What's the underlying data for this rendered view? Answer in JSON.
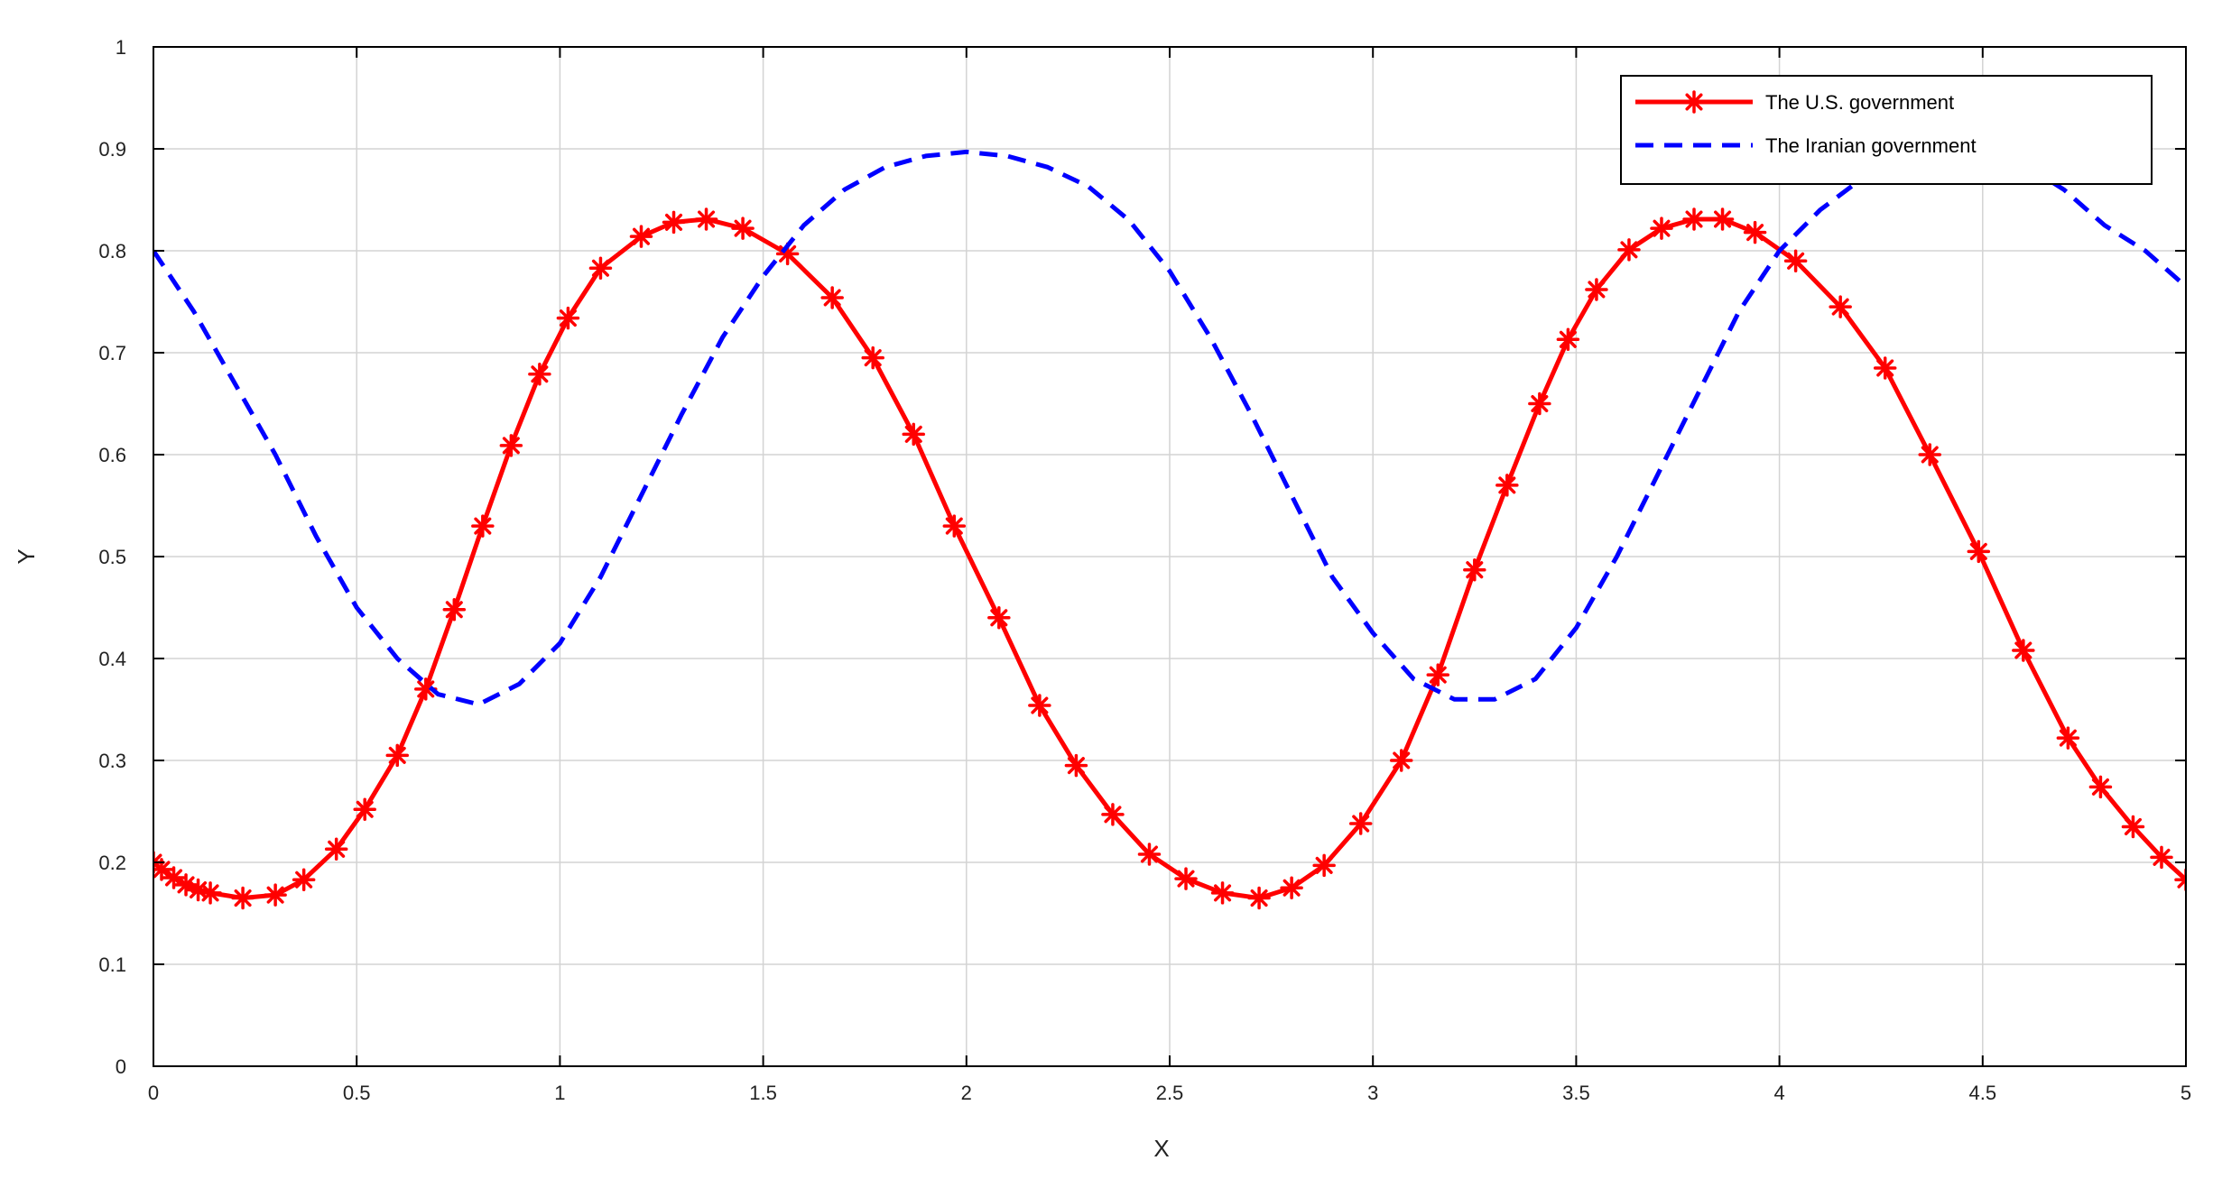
{
  "chart_data": {
    "type": "line",
    "title": "",
    "xlabel": "X",
    "ylabel": "Y",
    "xlim": [
      0,
      5
    ],
    "ylim": [
      0,
      1
    ],
    "xticks": [
      0,
      0.5,
      1,
      1.5,
      2,
      2.5,
      3,
      3.5,
      4,
      4.5,
      5
    ],
    "xtick_labels": [
      "0",
      "0.5",
      "1",
      "1.5",
      "2",
      "2.5",
      "3",
      "3.5",
      "4",
      "4.5",
      "5"
    ],
    "yticks": [
      0,
      0.1,
      0.2,
      0.3,
      0.4,
      0.5,
      0.6,
      0.7,
      0.8,
      0.9,
      1
    ],
    "ytick_labels": [
      "0",
      "0.1",
      "0.2",
      "0.3",
      "0.4",
      "0.5",
      "0.6",
      "0.7",
      "0.8",
      "0.9",
      "1"
    ],
    "grid": true,
    "legend_position": "top-right",
    "series": [
      {
        "name": "The U.S. government",
        "color": "#ff0000",
        "line_style": "solid",
        "marker": "asterisk",
        "x": [
          0,
          0.02,
          0.05,
          0.08,
          0.11,
          0.14,
          0.22,
          0.3,
          0.37,
          0.45,
          0.52,
          0.6,
          0.67,
          0.74,
          0.81,
          0.88,
          0.95,
          1.02,
          1.1,
          1.2,
          1.28,
          1.36,
          1.45,
          1.56,
          1.67,
          1.77,
          1.87,
          1.97,
          2.08,
          2.18,
          2.27,
          2.36,
          2.45,
          2.54,
          2.63,
          2.72,
          2.8,
          2.88,
          2.97,
          3.07,
          3.16,
          3.25,
          3.33,
          3.41,
          3.48,
          3.55,
          3.63,
          3.71,
          3.79,
          3.86,
          3.94,
          4.04,
          4.15,
          4.26,
          4.37,
          4.49,
          4.6,
          4.71,
          4.79,
          4.87,
          4.94,
          5.0
        ],
        "y": [
          0.2,
          0.193,
          0.185,
          0.178,
          0.173,
          0.17,
          0.165,
          0.168,
          0.183,
          0.213,
          0.252,
          0.305,
          0.37,
          0.448,
          0.53,
          0.609,
          0.679,
          0.734,
          0.783,
          0.814,
          0.828,
          0.831,
          0.822,
          0.797,
          0.754,
          0.695,
          0.62,
          0.53,
          0.44,
          0.354,
          0.295,
          0.247,
          0.208,
          0.184,
          0.17,
          0.165,
          0.175,
          0.197,
          0.238,
          0.3,
          0.384,
          0.487,
          0.57,
          0.65,
          0.713,
          0.762,
          0.801,
          0.822,
          0.831,
          0.831,
          0.818,
          0.79,
          0.745,
          0.685,
          0.6,
          0.505,
          0.408,
          0.322,
          0.274,
          0.235,
          0.205,
          0.183
        ]
      },
      {
        "name": "The Iranian government",
        "color": "#0000ff",
        "line_style": "dashed",
        "marker": "none",
        "x": [
          0,
          0.1,
          0.2,
          0.3,
          0.4,
          0.5,
          0.6,
          0.7,
          0.8,
          0.9,
          1.0,
          1.1,
          1.2,
          1.3,
          1.4,
          1.5,
          1.6,
          1.7,
          1.8,
          1.9,
          2.0,
          2.1,
          2.2,
          2.3,
          2.4,
          2.5,
          2.6,
          2.7,
          2.8,
          2.9,
          3.0,
          3.1,
          3.2,
          3.3,
          3.4,
          3.5,
          3.6,
          3.7,
          3.8,
          3.9,
          4.0,
          4.1,
          4.2,
          4.3,
          4.4,
          4.5,
          4.6,
          4.7,
          4.8,
          4.9,
          5.0
        ],
        "y": [
          0.8,
          0.74,
          0.67,
          0.6,
          0.52,
          0.45,
          0.4,
          0.365,
          0.355,
          0.375,
          0.415,
          0.48,
          0.56,
          0.64,
          0.715,
          0.775,
          0.825,
          0.86,
          0.882,
          0.893,
          0.897,
          0.893,
          0.882,
          0.863,
          0.83,
          0.78,
          0.715,
          0.64,
          0.56,
          0.48,
          0.425,
          0.38,
          0.36,
          0.36,
          0.38,
          0.43,
          0.5,
          0.58,
          0.66,
          0.74,
          0.8,
          0.84,
          0.87,
          0.89,
          0.895,
          0.893,
          0.885,
          0.86,
          0.825,
          0.8,
          0.765
        ]
      }
    ]
  }
}
